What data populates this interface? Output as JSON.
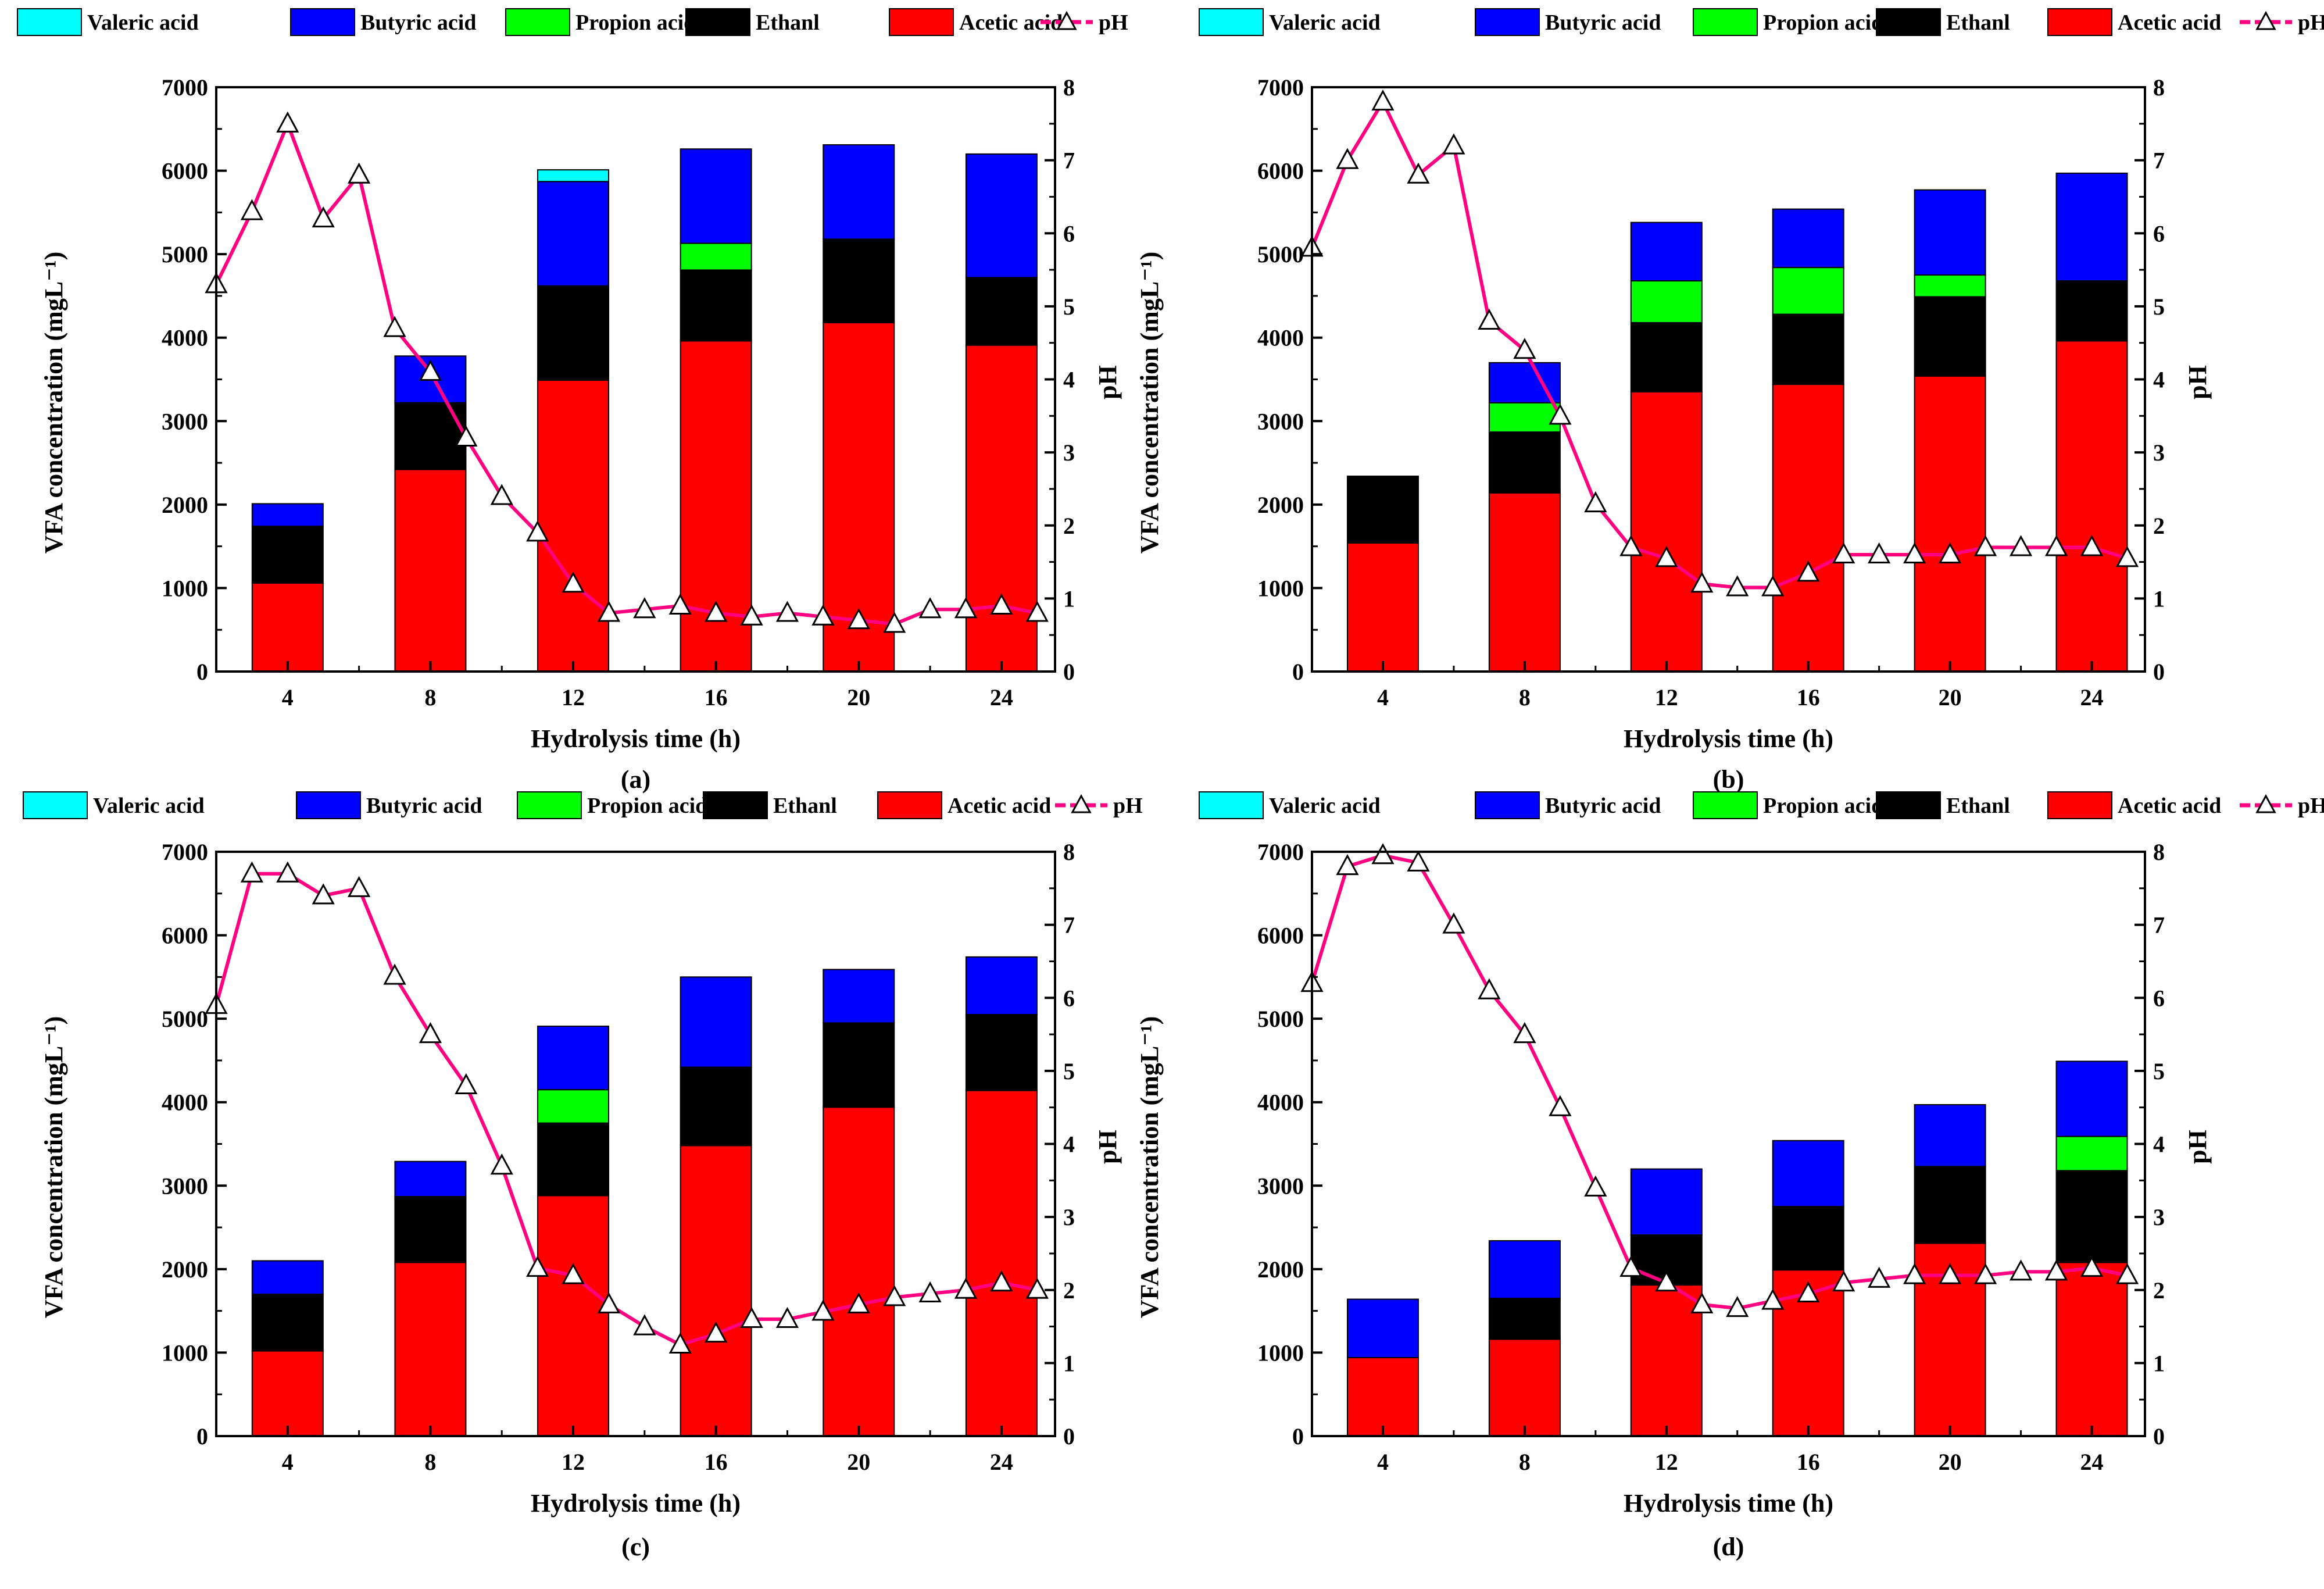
{
  "colors": {
    "Valeric acid": "#00ffff",
    "Butyric acid": "#0000ff",
    "Propion acid": "#00ff00",
    "Ethanl": "#000000",
    "Acetic acid": "#ff0000",
    "pH": "#ff0080"
  },
  "legend": [
    "Valeric acid",
    "Butyric acid",
    "Propion acid",
    "Ethanl",
    "Acetic acid",
    "pH"
  ],
  "chart_data": [
    {
      "type": "bar",
      "panel_label": "(a)",
      "xlabel": "Hydrolysis time  (h)",
      "ylabel": "VFA concentration  (mgL⁻¹)",
      "ylabel_right": "pH",
      "categories": [
        "4",
        "8",
        "12",
        "16",
        "20",
        "24"
      ],
      "ylim": [
        0,
        7000
      ],
      "yticks": [
        "0",
        "1000",
        "2000",
        "3000",
        "4000",
        "5000",
        "6000",
        "7000"
      ],
      "y2lim": [
        0,
        8
      ],
      "y2ticks": [
        "0",
        "1",
        "2",
        "3",
        "4",
        "5",
        "6",
        "7",
        "8"
      ],
      "xlim": [
        2,
        25.5
      ],
      "series": [
        {
          "name": "Acetic acid",
          "values": [
            1060,
            2420,
            3490,
            3960,
            4180,
            3910
          ]
        },
        {
          "name": "Ethanl",
          "values": [
            680,
            800,
            1130,
            850,
            1000,
            810
          ]
        },
        {
          "name": "Propion acid",
          "values": [
            0,
            0,
            0,
            320,
            0,
            0
          ]
        },
        {
          "name": "Butyric acid",
          "values": [
            270,
            560,
            1250,
            1130,
            1130,
            1480
          ]
        },
        {
          "name": "Valeric acid",
          "values": [
            0,
            0,
            140,
            0,
            0,
            0
          ]
        }
      ],
      "ph": {
        "x": [
          2,
          3,
          4,
          5,
          6,
          7,
          8,
          9,
          10,
          11,
          12,
          13,
          14,
          15,
          16,
          17,
          18,
          19,
          20,
          21,
          22,
          23,
          24,
          25
        ],
        "y": [
          5.3,
          6.3,
          7.5,
          6.2,
          6.8,
          4.7,
          4.1,
          3.2,
          2.4,
          1.9,
          1.2,
          0.8,
          0.85,
          0.9,
          0.8,
          0.75,
          0.8,
          0.75,
          0.7,
          0.65,
          0.85,
          0.85,
          0.9,
          0.8
        ]
      }
    },
    {
      "type": "bar",
      "panel_label": "(b)",
      "xlabel": "Hydrolysis time  (h)",
      "ylabel": "VFA concentration  (mgL⁻¹)",
      "ylabel_right": "pH",
      "categories": [
        "4",
        "8",
        "12",
        "16",
        "20",
        "24"
      ],
      "ylim": [
        0,
        7000
      ],
      "yticks": [
        "0",
        "1000",
        "2000",
        "3000",
        "4000",
        "5000",
        "6000",
        "7000"
      ],
      "y2lim": [
        0,
        8
      ],
      "y2ticks": [
        "0",
        "1",
        "2",
        "3",
        "4",
        "5",
        "6",
        "7",
        "8"
      ],
      "xlim": [
        2,
        25.5
      ],
      "series": [
        {
          "name": "Acetic acid",
          "values": [
            1540,
            2140,
            3350,
            3440,
            3540,
            3960
          ]
        },
        {
          "name": "Ethanl",
          "values": [
            800,
            730,
            830,
            840,
            950,
            720
          ]
        },
        {
          "name": "Propion acid",
          "values": [
            0,
            350,
            500,
            560,
            260,
            0
          ]
        },
        {
          "name": "Butyric acid",
          "values": [
            0,
            480,
            700,
            700,
            1020,
            1290
          ]
        },
        {
          "name": "Valeric acid",
          "values": [
            0,
            0,
            0,
            0,
            0,
            0
          ]
        }
      ],
      "ph": {
        "x": [
          2,
          3,
          4,
          5,
          6,
          7,
          8,
          9,
          10,
          11,
          12,
          13,
          14,
          15,
          16,
          17,
          18,
          19,
          20,
          21,
          22,
          23,
          24,
          25
        ],
        "y": [
          5.8,
          7.0,
          7.8,
          6.8,
          7.2,
          4.8,
          4.4,
          3.5,
          2.3,
          1.7,
          1.55,
          1.2,
          1.15,
          1.15,
          1.35,
          1.6,
          1.6,
          1.6,
          1.6,
          1.7,
          1.7,
          1.7,
          1.7,
          1.55
        ]
      }
    },
    {
      "type": "bar",
      "panel_label": "(c)",
      "xlabel": "Hydrolysis time  (h)",
      "ylabel": "VFA concentration  (mgL⁻¹)",
      "ylabel_right": "pH",
      "categories": [
        "4",
        "8",
        "12",
        "16",
        "20",
        "24"
      ],
      "ylim": [
        0,
        7000
      ],
      "yticks": [
        "0",
        "1000",
        "2000",
        "3000",
        "4000",
        "5000",
        "6000",
        "7000"
      ],
      "y2lim": [
        0,
        8
      ],
      "y2ticks": [
        "0",
        "1",
        "2",
        "3",
        "4",
        "5",
        "6",
        "7",
        "8"
      ],
      "xlim": [
        2,
        25.5
      ],
      "series": [
        {
          "name": "Acetic acid",
          "values": [
            1020,
            2080,
            2880,
            3480,
            3940,
            4140
          ]
        },
        {
          "name": "Ethanl",
          "values": [
            680,
            790,
            870,
            940,
            1010,
            910
          ]
        },
        {
          "name": "Propion acid",
          "values": [
            0,
            0,
            400,
            0,
            0,
            0
          ]
        },
        {
          "name": "Butyric acid",
          "values": [
            400,
            420,
            760,
            1080,
            640,
            690
          ]
        },
        {
          "name": "Valeric acid",
          "values": [
            0,
            0,
            0,
            0,
            0,
            0
          ]
        }
      ],
      "ph": {
        "x": [
          2,
          3,
          4,
          5,
          6,
          7,
          8,
          9,
          10,
          11,
          12,
          13,
          14,
          15,
          16,
          17,
          18,
          19,
          20,
          21,
          22,
          23,
          24,
          25
        ],
        "y": [
          5.9,
          7.7,
          7.7,
          7.4,
          7.5,
          6.3,
          5.5,
          4.8,
          3.7,
          2.3,
          2.2,
          1.8,
          1.5,
          1.25,
          1.4,
          1.6,
          1.6,
          1.7,
          1.8,
          1.9,
          1.95,
          2.0,
          2.1,
          2.0
        ]
      }
    },
    {
      "type": "bar",
      "panel_label": "(d)",
      "xlabel": "Hydrolysis time  (h)",
      "ylabel": "VFA concentration  (mgL⁻¹)",
      "ylabel_right": "pH",
      "categories": [
        "4",
        "8",
        "12",
        "16",
        "20",
        "24"
      ],
      "ylim": [
        0,
        7000
      ],
      "yticks": [
        "0",
        "1000",
        "2000",
        "3000",
        "4000",
        "5000",
        "6000",
        "7000"
      ],
      "y2lim": [
        0,
        8
      ],
      "y2ticks": [
        "0",
        "1",
        "2",
        "3",
        "4",
        "5",
        "6",
        "7",
        "8"
      ],
      "xlim": [
        2,
        25.5
      ],
      "series": [
        {
          "name": "Acetic acid",
          "values": [
            940,
            1160,
            1810,
            1990,
            2310,
            2080
          ]
        },
        {
          "name": "Ethanl",
          "values": [
            0,
            490,
            600,
            760,
            920,
            1100
          ]
        },
        {
          "name": "Propion acid",
          "values": [
            0,
            0,
            0,
            0,
            0,
            410
          ]
        },
        {
          "name": "Butyric acid",
          "values": [
            700,
            690,
            790,
            790,
            740,
            900
          ]
        },
        {
          "name": "Valeric acid",
          "values": [
            0,
            0,
            0,
            0,
            0,
            0
          ]
        }
      ],
      "ph": {
        "x": [
          2,
          3,
          4,
          5,
          6,
          7,
          8,
          9,
          10,
          11,
          12,
          13,
          14,
          15,
          16,
          17,
          18,
          19,
          20,
          21,
          22,
          23,
          24,
          25
        ],
        "y": [
          6.2,
          7.8,
          7.95,
          7.85,
          7.0,
          6.1,
          5.5,
          4.5,
          3.4,
          2.3,
          2.1,
          1.8,
          1.75,
          1.85,
          1.95,
          2.1,
          2.15,
          2.2,
          2.2,
          2.2,
          2.25,
          2.25,
          2.3,
          2.2
        ]
      }
    }
  ]
}
